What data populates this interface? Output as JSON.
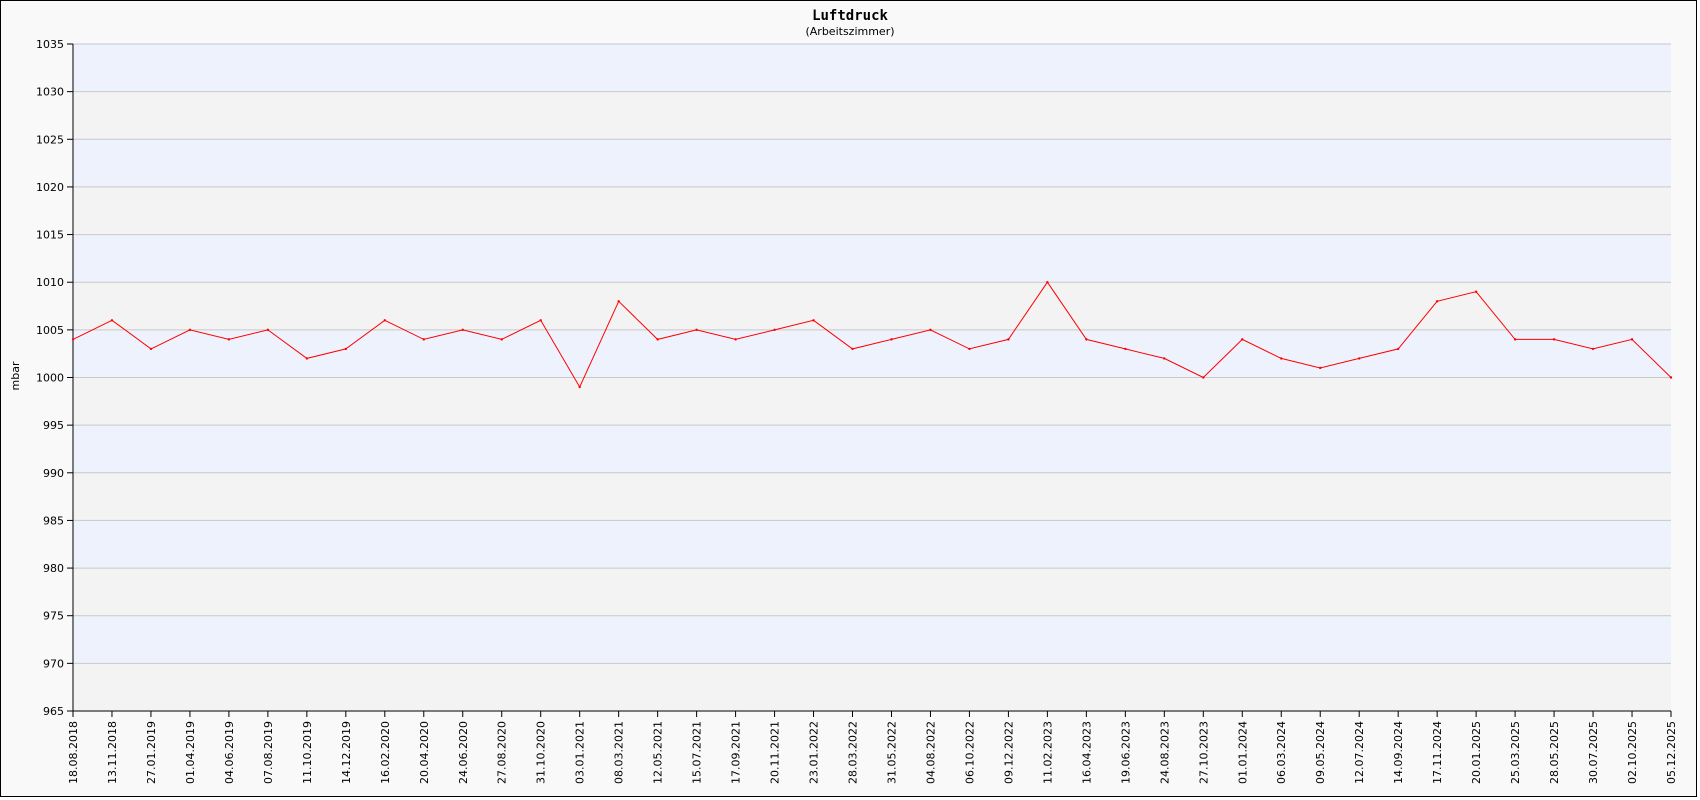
{
  "chart_data": {
    "type": "line",
    "title": "Luftdruck",
    "subtitle": "(Arbeitszimmer)",
    "ylabel": "mbar",
    "xlabel": "",
    "ylim": [
      965,
      1035
    ],
    "yticks": [
      965,
      970,
      975,
      980,
      985,
      990,
      995,
      1000,
      1005,
      1010,
      1015,
      1020,
      1025,
      1030,
      1035
    ],
    "xtick_labels": [
      "18.08.2018",
      "13.11.2018",
      "27.01.2019",
      "01.04.2019",
      "04.06.2019",
      "07.08.2019",
      "11.10.2019",
      "14.12.2019",
      "16.02.2020",
      "20.04.2020",
      "24.06.2020",
      "27.08.2020",
      "31.10.2020",
      "03.01.2021",
      "08.03.2021",
      "12.05.2021",
      "15.07.2021",
      "17.09.2021",
      "20.11.2021",
      "23.01.2022",
      "28.03.2022",
      "31.05.2022",
      "04.08.2022",
      "06.10.2022",
      "09.12.2022",
      "11.02.2023",
      "16.04.2023",
      "19.06.2023",
      "24.08.2023",
      "27.10.2023",
      "01.01.2024",
      "06.03.2024",
      "09.05.2024",
      "12.07.2024",
      "14.09.2024",
      "17.11.2024",
      "20.01.2025",
      "25.03.2025",
      "28.05.2025",
      "30.07.2025",
      "02.10.2025",
      "05.12.2025"
    ],
    "grid": true,
    "series": [
      {
        "color": "#ff0000",
        "x": [
          "18.08.2018",
          "13.11.2018",
          "27.01.2019",
          "01.04.2019",
          "04.06.2019",
          "07.08.2019",
          "11.10.2019",
          "14.12.2019",
          "16.02.2020",
          "20.04.2020",
          "24.06.2020",
          "27.08.2020",
          "31.10.2020",
          "03.01.2021",
          "08.03.2021",
          "12.05.2021",
          "15.07.2021",
          "17.09.2021",
          "20.11.2021",
          "23.01.2022",
          "28.03.2022",
          "31.05.2022",
          "04.08.2022",
          "06.10.2022",
          "09.12.2022",
          "11.02.2023",
          "16.04.2023",
          "19.06.2023",
          "24.08.2023",
          "27.10.2023",
          "01.01.2024",
          "06.03.2024",
          "09.05.2024",
          "12.07.2024",
          "14.09.2024",
          "17.11.2024",
          "20.01.2025",
          "25.03.2025",
          "28.05.2025",
          "30.07.2025",
          "02.10.2025",
          "05.12.2025"
        ],
        "values": [
          1004,
          1006,
          1003,
          1005,
          1004,
          1005,
          1002,
          1003,
          1006,
          1004,
          1005,
          1004,
          1006,
          999,
          1008,
          1004,
          1005,
          1004,
          1005,
          1006,
          1003,
          1004,
          1005,
          1003,
          1004,
          1010,
          1004,
          1003,
          1002,
          1000,
          1004,
          1002,
          1001,
          1002,
          1003,
          1008,
          1009,
          1004,
          1004,
          1003,
          1004,
          1000
        ]
      }
    ]
  }
}
